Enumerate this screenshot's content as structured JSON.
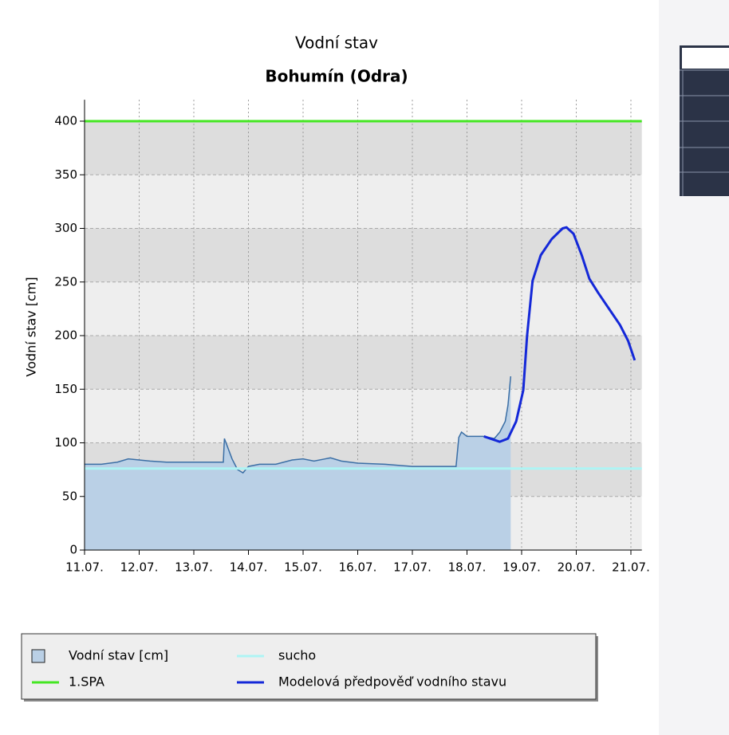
{
  "chart_data": {
    "type": "line",
    "title": "Vodní stav",
    "subtitle": "Bohumín (Odra)",
    "ylabel": "Vodní stav [cm]",
    "xlim": [
      11,
      21.2
    ],
    "ylim": [
      0,
      420
    ],
    "xticks": [
      {
        "value": 11,
        "label": "11.07."
      },
      {
        "value": 12,
        "label": "12.07."
      },
      {
        "value": 13,
        "label": "13.07."
      },
      {
        "value": 14,
        "label": "14.07."
      },
      {
        "value": 15,
        "label": "15.07."
      },
      {
        "value": 16,
        "label": "16.07."
      },
      {
        "value": 17,
        "label": "17.07."
      },
      {
        "value": 18,
        "label": "18.07."
      },
      {
        "value": 19,
        "label": "19.07."
      },
      {
        "value": 20,
        "label": "20.07."
      },
      {
        "value": 21,
        "label": "21.07."
      }
    ],
    "yticks": [
      0,
      50,
      100,
      150,
      200,
      250,
      300,
      350,
      400
    ],
    "band_colors": [
      "#eeeeee",
      "#dddddd"
    ],
    "grid": true,
    "series": [
      {
        "name": "Vodní stav [cm]",
        "kind": "area",
        "color": "#3a6ea5",
        "fill": "#bad0e6",
        "x": [
          11.0,
          11.3,
          11.6,
          11.8,
          12.2,
          12.5,
          13.0,
          13.5,
          13.54,
          13.56,
          13.7,
          13.8,
          13.9,
          14.0,
          14.2,
          14.5,
          14.8,
          15.0,
          15.2,
          15.4,
          15.5,
          15.7,
          16.0,
          16.5,
          17.0,
          17.5,
          17.8,
          17.85,
          17.9,
          18.0,
          18.3,
          18.5,
          18.6,
          18.7,
          18.75,
          18.8
        ],
        "values": [
          80,
          80,
          82,
          85,
          83,
          82,
          82,
          82,
          82,
          104,
          85,
          75,
          72,
          78,
          80,
          80,
          84,
          85,
          83,
          85,
          86,
          83,
          81,
          80,
          78,
          78,
          78,
          105,
          110,
          106,
          106,
          104,
          110,
          120,
          135,
          162
        ]
      },
      {
        "name": "sucho",
        "kind": "hline",
        "color": "#aef4f4",
        "value": 76
      },
      {
        "name": "1.SPA",
        "kind": "hline",
        "color": "#44e622",
        "value": 400
      },
      {
        "name": "Modelová předpověď vodního stavu",
        "kind": "line",
        "color": "#1428d8",
        "x": [
          18.31,
          18.6,
          18.75,
          18.9,
          19.03,
          19.1,
          19.2,
          19.35,
          19.55,
          19.75,
          19.82,
          19.95,
          20.1,
          20.24,
          20.4,
          20.6,
          20.8,
          20.95,
          21.07
        ],
        "values": [
          106,
          101,
          104,
          120,
          149,
          200,
          251,
          275,
          290,
          300,
          301,
          295,
          275,
          253,
          240,
          225,
          210,
          195,
          177
        ]
      }
    ]
  }
}
